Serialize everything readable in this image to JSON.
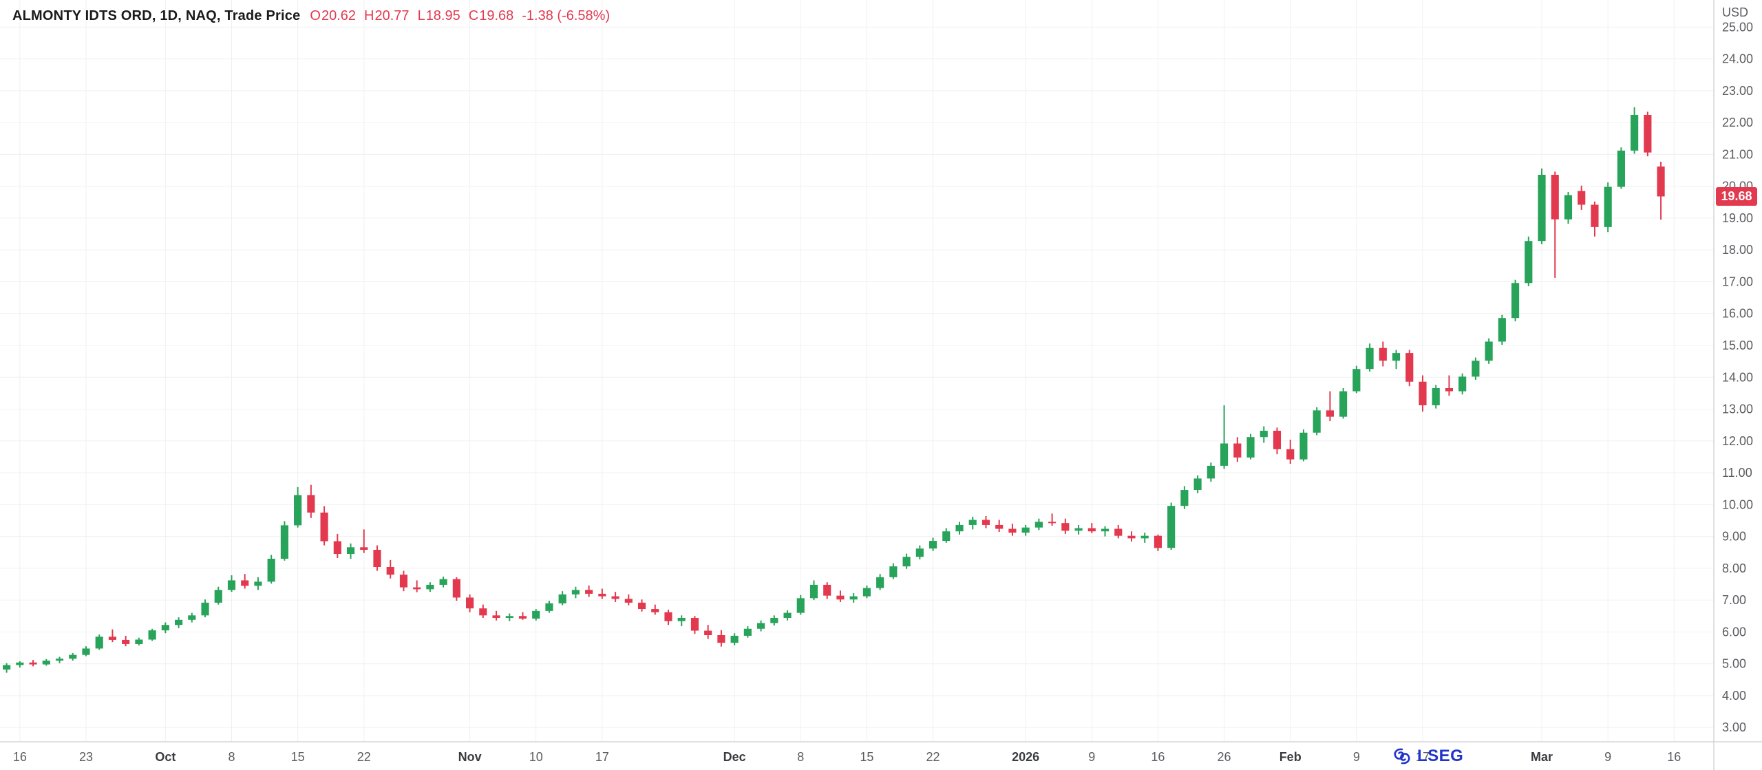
{
  "header": {
    "title": "ALMONTY IDTS ORD, 1D, NAQ, Trade Price",
    "ohlc": {
      "o_label": "O",
      "o": "20.62",
      "h_label": "H",
      "h": "20.77",
      "l_label": "L",
      "l": "18.95",
      "c_label": "C",
      "c": "19.68",
      "change": "-1.38 (-6.58%)"
    }
  },
  "axis": {
    "currency_label": "USD",
    "last_price_badge": "19.68",
    "price_ticks": [
      "25.00",
      "24.00",
      "23.00",
      "22.00",
      "21.00",
      "20.00",
      "19.00",
      "18.00",
      "17.00",
      "16.00",
      "15.00",
      "14.00",
      "13.00",
      "12.00",
      "11.00",
      "10.00",
      "9.00",
      "8.00",
      "7.00",
      "6.00",
      "5.00",
      "4.00",
      "3.00"
    ]
  },
  "footer": {
    "brand": "LSEG"
  },
  "colors": {
    "up": "#27a35a",
    "down": "#e2394e",
    "badge": "#e2394e",
    "grid": "#f0f0f1",
    "axis_text": "#5a5c60",
    "major_tick_text": "#3a3c40",
    "axis_line": "#d6d6d8",
    "title_text": "#1a1a1a",
    "brand_blue": "#2133cc"
  },
  "chart_data": {
    "type": "candlestick",
    "symbol": "ALMONTY IDTS ORD",
    "interval": "1D",
    "exchange": "NAQ",
    "field": "Trade Price",
    "currency": "USD",
    "ylim": [
      2.55,
      25.85
    ],
    "grid": true,
    "x_ticks": [
      {
        "label": "16",
        "index": 1
      },
      {
        "label": "23",
        "index": 6
      },
      {
        "label": "Oct",
        "index": 12,
        "major": true
      },
      {
        "label": "8",
        "index": 17
      },
      {
        "label": "15",
        "index": 22
      },
      {
        "label": "22",
        "index": 27
      },
      {
        "label": "Nov",
        "index": 35,
        "major": true
      },
      {
        "label": "10",
        "index": 40
      },
      {
        "label": "17",
        "index": 45
      },
      {
        "label": "Dec",
        "index": 55,
        "major": true
      },
      {
        "label": "8",
        "index": 60
      },
      {
        "label": "15",
        "index": 65
      },
      {
        "label": "22",
        "index": 70
      },
      {
        "label": "2026",
        "index": 77,
        "major": true
      },
      {
        "label": "9",
        "index": 82
      },
      {
        "label": "16",
        "index": 87
      },
      {
        "label": "26",
        "index": 92
      },
      {
        "label": "Feb",
        "index": 97,
        "major": true
      },
      {
        "label": "9",
        "index": 102
      },
      {
        "label": "17",
        "index": 107
      },
      {
        "label": "Mar",
        "index": 116,
        "major": true
      },
      {
        "label": "9",
        "index": 121
      },
      {
        "label": "16",
        "index": 126
      }
    ],
    "candles": [
      [
        "2025-09-15",
        4.82,
        5.02,
        4.72,
        4.96
      ],
      [
        "2025-09-16",
        4.96,
        5.08,
        4.88,
        5.04
      ],
      [
        "2025-09-17",
        5.04,
        5.12,
        4.92,
        4.98
      ],
      [
        "2025-09-18",
        4.98,
        5.15,
        4.94,
        5.1
      ],
      [
        "2025-09-19",
        5.1,
        5.22,
        5.02,
        5.16
      ],
      [
        "2025-09-22",
        5.16,
        5.34,
        5.1,
        5.28
      ],
      [
        "2025-09-23",
        5.28,
        5.55,
        5.24,
        5.48
      ],
      [
        "2025-09-24",
        5.48,
        5.92,
        5.44,
        5.85
      ],
      [
        "2025-09-25",
        5.85,
        6.08,
        5.68,
        5.75
      ],
      [
        "2025-09-26",
        5.75,
        5.88,
        5.55,
        5.62
      ],
      [
        "2025-09-29",
        5.62,
        5.82,
        5.58,
        5.76
      ],
      [
        "2025-09-30",
        5.76,
        6.1,
        5.72,
        6.05
      ],
      [
        "2025-10-01",
        6.05,
        6.3,
        5.96,
        6.22
      ],
      [
        "2025-10-02",
        6.22,
        6.46,
        6.12,
        6.38
      ],
      [
        "2025-10-03",
        6.38,
        6.6,
        6.3,
        6.52
      ],
      [
        "2025-10-06",
        6.52,
        7.02,
        6.46,
        6.92
      ],
      [
        "2025-10-07",
        6.92,
        7.42,
        6.86,
        7.32
      ],
      [
        "2025-10-08",
        7.32,
        7.78,
        7.26,
        7.62
      ],
      [
        "2025-10-09",
        7.62,
        7.82,
        7.36,
        7.45
      ],
      [
        "2025-10-10",
        7.45,
        7.72,
        7.32,
        7.58
      ],
      [
        "2025-10-13",
        7.58,
        8.42,
        7.52,
        8.3
      ],
      [
        "2025-10-14",
        8.3,
        9.48,
        8.24,
        9.35
      ],
      [
        "2025-10-15",
        9.35,
        10.55,
        9.28,
        10.3
      ],
      [
        "2025-10-16",
        10.3,
        10.62,
        9.58,
        9.75
      ],
      [
        "2025-10-17",
        9.75,
        9.95,
        8.72,
        8.85
      ],
      [
        "2025-10-20",
        8.85,
        9.08,
        8.32,
        8.45
      ],
      [
        "2025-10-21",
        8.45,
        8.78,
        8.3,
        8.66
      ],
      [
        "2025-10-22",
        8.66,
        9.22,
        8.48,
        8.58
      ],
      [
        "2025-10-23",
        8.58,
        8.72,
        7.92,
        8.04
      ],
      [
        "2025-10-24",
        8.04,
        8.26,
        7.68,
        7.8
      ],
      [
        "2025-10-27",
        7.8,
        7.92,
        7.28,
        7.4
      ],
      [
        "2025-10-28",
        7.4,
        7.62,
        7.25,
        7.34
      ],
      [
        "2025-10-29",
        7.34,
        7.56,
        7.26,
        7.48
      ],
      [
        "2025-10-30",
        7.48,
        7.74,
        7.4,
        7.66
      ],
      [
        "2025-10-31",
        7.66,
        7.72,
        6.98,
        7.08
      ],
      [
        "2025-11-03",
        7.08,
        7.18,
        6.62,
        6.74
      ],
      [
        "2025-11-04",
        6.74,
        6.86,
        6.44,
        6.52
      ],
      [
        "2025-11-05",
        6.52,
        6.66,
        6.36,
        6.44
      ],
      [
        "2025-11-06",
        6.44,
        6.58,
        6.34,
        6.5
      ],
      [
        "2025-11-07",
        6.5,
        6.62,
        6.38,
        6.42
      ],
      [
        "2025-11-10",
        6.42,
        6.72,
        6.36,
        6.66
      ],
      [
        "2025-11-11",
        6.66,
        6.98,
        6.6,
        6.9
      ],
      [
        "2025-11-12",
        6.9,
        7.28,
        6.84,
        7.18
      ],
      [
        "2025-11-13",
        7.18,
        7.42,
        7.06,
        7.32
      ],
      [
        "2025-11-14",
        7.32,
        7.46,
        7.1,
        7.2
      ],
      [
        "2025-11-17",
        7.2,
        7.36,
        7.04,
        7.12
      ],
      [
        "2025-11-18",
        7.12,
        7.26,
        6.94,
        7.04
      ],
      [
        "2025-11-19",
        7.04,
        7.18,
        6.84,
        6.92
      ],
      [
        "2025-11-20",
        6.92,
        7.02,
        6.64,
        6.72
      ],
      [
        "2025-11-21",
        6.72,
        6.86,
        6.54,
        6.62
      ],
      [
        "2025-11-24",
        6.62,
        6.7,
        6.22,
        6.34
      ],
      [
        "2025-11-25",
        6.34,
        6.52,
        6.18,
        6.44
      ],
      [
        "2025-11-26",
        6.44,
        6.5,
        5.94,
        6.04
      ],
      [
        "2025-11-27",
        6.04,
        6.22,
        5.78,
        5.9
      ],
      [
        "2025-11-28",
        5.9,
        6.06,
        5.54,
        5.66
      ],
      [
        "2025-12-01",
        5.66,
        5.96,
        5.58,
        5.88
      ],
      [
        "2025-12-02",
        5.88,
        6.18,
        5.82,
        6.1
      ],
      [
        "2025-12-03",
        6.1,
        6.36,
        6.02,
        6.28
      ],
      [
        "2025-12-04",
        6.28,
        6.52,
        6.2,
        6.44
      ],
      [
        "2025-12-05",
        6.44,
        6.68,
        6.36,
        6.6
      ],
      [
        "2025-12-08",
        6.6,
        7.16,
        6.54,
        7.06
      ],
      [
        "2025-12-09",
        7.06,
        7.62,
        7.0,
        7.48
      ],
      [
        "2025-12-10",
        7.48,
        7.56,
        7.04,
        7.14
      ],
      [
        "2025-12-11",
        7.14,
        7.3,
        6.94,
        7.02
      ],
      [
        "2025-12-12",
        7.02,
        7.22,
        6.92,
        7.12
      ],
      [
        "2025-12-15",
        7.12,
        7.46,
        7.06,
        7.38
      ],
      [
        "2025-12-16",
        7.38,
        7.82,
        7.32,
        7.72
      ],
      [
        "2025-12-17",
        7.72,
        8.16,
        7.66,
        8.06
      ],
      [
        "2025-12-18",
        8.06,
        8.46,
        7.98,
        8.36
      ],
      [
        "2025-12-19",
        8.36,
        8.72,
        8.28,
        8.62
      ],
      [
        "2025-12-22",
        8.62,
        8.96,
        8.54,
        8.86
      ],
      [
        "2025-12-23",
        8.86,
        9.26,
        8.8,
        9.16
      ],
      [
        "2025-12-24",
        9.16,
        9.46,
        9.06,
        9.36
      ],
      [
        "2025-12-26",
        9.36,
        9.62,
        9.22,
        9.52
      ],
      [
        "2025-12-29",
        9.52,
        9.64,
        9.26,
        9.36
      ],
      [
        "2025-12-30",
        9.36,
        9.52,
        9.14,
        9.24
      ],
      [
        "2025-12-31",
        9.24,
        9.4,
        9.02,
        9.12
      ],
      [
        "2026-01-02",
        9.12,
        9.36,
        9.02,
        9.28
      ],
      [
        "2026-01-05",
        9.28,
        9.56,
        9.2,
        9.46
      ],
      [
        "2026-01-06",
        9.46,
        9.72,
        9.34,
        9.42
      ],
      [
        "2026-01-07",
        9.42,
        9.56,
        9.08,
        9.18
      ],
      [
        "2026-01-08",
        9.18,
        9.36,
        9.06,
        9.26
      ],
      [
        "2026-01-09",
        9.26,
        9.42,
        9.1,
        9.16
      ],
      [
        "2026-01-12",
        9.16,
        9.32,
        9.0,
        9.24
      ],
      [
        "2026-01-13",
        9.24,
        9.36,
        8.94,
        9.02
      ],
      [
        "2026-01-14",
        9.02,
        9.16,
        8.84,
        8.94
      ],
      [
        "2026-01-15",
        8.94,
        9.12,
        8.8,
        9.02
      ],
      [
        "2026-01-16",
        9.02,
        9.06,
        8.54,
        8.64
      ],
      [
        "2026-01-20",
        8.64,
        10.06,
        8.58,
        9.96
      ],
      [
        "2026-01-21",
        9.96,
        10.58,
        9.86,
        10.46
      ],
      [
        "2026-01-22",
        10.46,
        10.92,
        10.36,
        10.82
      ],
      [
        "2026-01-23",
        10.82,
        11.32,
        10.72,
        11.22
      ],
      [
        "2026-01-26",
        11.22,
        13.12,
        11.12,
        11.92
      ],
      [
        "2026-01-27",
        11.92,
        12.12,
        11.34,
        11.48
      ],
      [
        "2026-01-28",
        11.48,
        12.22,
        11.42,
        12.12
      ],
      [
        "2026-01-29",
        12.12,
        12.46,
        11.94,
        12.32
      ],
      [
        "2026-01-30",
        12.32,
        12.42,
        11.58,
        11.74
      ],
      [
        "2026-02-02",
        11.74,
        12.04,
        11.28,
        11.42
      ],
      [
        "2026-02-03",
        11.42,
        12.36,
        11.36,
        12.26
      ],
      [
        "2026-02-04",
        12.26,
        13.06,
        12.18,
        12.96
      ],
      [
        "2026-02-05",
        12.96,
        13.56,
        12.62,
        12.76
      ],
      [
        "2026-02-06",
        12.76,
        13.66,
        12.7,
        13.56
      ],
      [
        "2026-02-09",
        13.56,
        14.36,
        13.5,
        14.26
      ],
      [
        "2026-02-10",
        14.26,
        15.06,
        14.18,
        14.92
      ],
      [
        "2026-02-11",
        14.92,
        15.12,
        14.34,
        14.52
      ],
      [
        "2026-02-12",
        14.52,
        14.86,
        14.26,
        14.76
      ],
      [
        "2026-02-13",
        14.76,
        14.86,
        13.72,
        13.86
      ],
      [
        "2026-02-17",
        13.86,
        14.06,
        12.92,
        13.12
      ],
      [
        "2026-02-18",
        13.12,
        13.76,
        13.02,
        13.66
      ],
      [
        "2026-02-19",
        13.66,
        14.06,
        13.42,
        13.56
      ],
      [
        "2026-02-20",
        13.56,
        14.12,
        13.46,
        14.02
      ],
      [
        "2026-02-23",
        14.02,
        14.62,
        13.92,
        14.52
      ],
      [
        "2026-02-24",
        14.52,
        15.22,
        14.42,
        15.12
      ],
      [
        "2026-02-25",
        15.12,
        15.96,
        15.02,
        15.86
      ],
      [
        "2026-02-26",
        15.86,
        17.06,
        15.76,
        16.96
      ],
      [
        "2026-02-27",
        16.96,
        18.42,
        16.86,
        18.28
      ],
      [
        "2026-03-02",
        18.28,
        20.56,
        18.18,
        20.36
      ],
      [
        "2026-03-03",
        20.36,
        20.46,
        17.12,
        18.96
      ],
      [
        "2026-03-04",
        18.96,
        19.82,
        18.82,
        19.72
      ],
      [
        "2026-03-05",
        19.85,
        20.02,
        19.26,
        19.42
      ],
      [
        "2026-03-06",
        19.42,
        19.52,
        18.42,
        18.72
      ],
      [
        "2026-03-09",
        18.72,
        20.12,
        18.56,
        19.98
      ],
      [
        "2026-03-10",
        19.98,
        21.22,
        19.92,
        21.12
      ],
      [
        "2026-03-11",
        21.12,
        22.48,
        21.02,
        22.24
      ],
      [
        "2026-03-12",
        22.24,
        22.34,
        20.94,
        21.06
      ],
      [
        "2026-03-13",
        20.62,
        20.77,
        18.95,
        19.68
      ]
    ]
  }
}
